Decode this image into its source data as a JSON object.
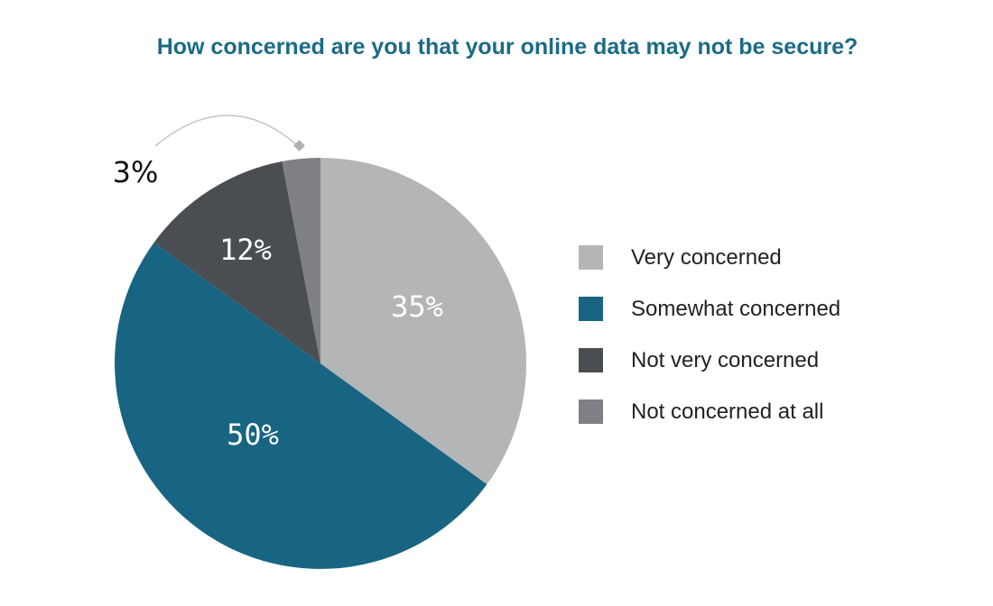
{
  "chart_data": {
    "type": "pie",
    "title": "How concerned are you that your online data may not be secure?",
    "categories": [
      "Very concerned",
      "Somewhat concerned",
      "Not very concerned",
      "Not concerned at all"
    ],
    "values": [
      35,
      50,
      12,
      3
    ],
    "labels": [
      "35%",
      "50%",
      "12%",
      "3%"
    ],
    "colors": [
      "#b4b5b7",
      "#176582",
      "#4a4e52",
      "#7f8083"
    ],
    "start_angle": "top, clockwise",
    "legend_position": "right"
  }
}
